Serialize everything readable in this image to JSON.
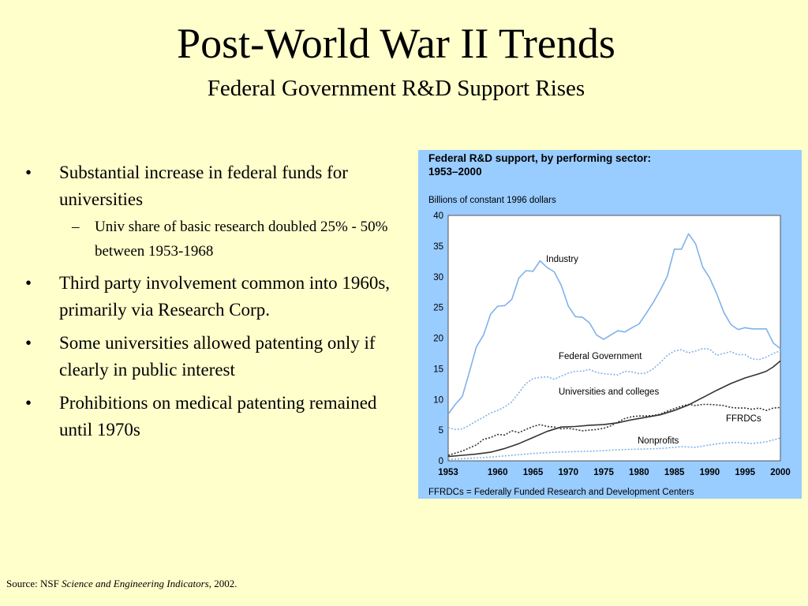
{
  "slide": {
    "title": "Post-World War II Trends",
    "subtitle": "Federal Government R&D Support Rises",
    "bullets": [
      {
        "text": "Substantial increase in federal funds for universities",
        "subitems": [
          "Univ share of basic research doubled 25% - 50% between 1953-1968"
        ]
      },
      {
        "text": "Third party involvement common into 1960s, primarily via Research Corp.",
        "subitems": []
      },
      {
        "text": "Some universities allowed patenting only if clearly in public interest",
        "subitems": []
      },
      {
        "text": "Prohibitions on medical patenting remained until 1970s",
        "subitems": []
      }
    ],
    "source": {
      "prefix": "Source: NSF ",
      "publication": "Science and Engineering Indicators",
      "suffix": ", 2002."
    }
  },
  "colors": {
    "background": "#ffffcc",
    "chart_panel": "#99ccff",
    "plot_area": "#ffffff",
    "light_series": "#7fb2ea",
    "dark_series": "#333333"
  },
  "chart_data": {
    "type": "line",
    "title_lines": [
      "Federal R&D support, by performing sector:",
      "1953–2000"
    ],
    "ylabel": "Billions of constant 1996 dollars",
    "xlabel": "",
    "footnote": "FFRDCs = Federally Funded Research and Development Centers",
    "ylim": [
      0,
      40
    ],
    "xlim": [
      1953,
      2000
    ],
    "y_ticks": [
      0,
      5,
      10,
      15,
      20,
      25,
      30,
      35,
      40
    ],
    "x_ticks": [
      1953,
      1960,
      1965,
      1970,
      1975,
      1980,
      1985,
      1990,
      1995,
      2000
    ],
    "grid": false,
    "legend": "inline labels",
    "series": [
      {
        "name": "Industry",
        "style": "light-solid",
        "points": [
          [
            1953,
            7.6
          ],
          [
            1954,
            9.2
          ],
          [
            1955,
            10.5
          ],
          [
            1956,
            14.5
          ],
          [
            1957,
            18.6
          ],
          [
            1958,
            20.5
          ],
          [
            1959,
            23.9
          ],
          [
            1960,
            25.2
          ],
          [
            1961,
            25.3
          ],
          [
            1962,
            26.3
          ],
          [
            1963,
            29.8
          ],
          [
            1964,
            31.0
          ],
          [
            1965,
            30.9
          ],
          [
            1966,
            32.6
          ],
          [
            1967,
            31.5
          ],
          [
            1968,
            30.8
          ],
          [
            1969,
            28.6
          ],
          [
            1970,
            25.2
          ],
          [
            1971,
            23.5
          ],
          [
            1972,
            23.4
          ],
          [
            1973,
            22.5
          ],
          [
            1974,
            20.5
          ],
          [
            1975,
            19.8
          ],
          [
            1976,
            20.5
          ],
          [
            1977,
            21.2
          ],
          [
            1978,
            21.0
          ],
          [
            1979,
            21.7
          ],
          [
            1980,
            22.3
          ],
          [
            1981,
            24.0
          ],
          [
            1982,
            25.8
          ],
          [
            1983,
            27.8
          ],
          [
            1984,
            30.1
          ],
          [
            1985,
            34.5
          ],
          [
            1986,
            34.5
          ],
          [
            1987,
            37.0
          ],
          [
            1988,
            35.4
          ],
          [
            1989,
            31.6
          ],
          [
            1990,
            29.8
          ],
          [
            1991,
            27.2
          ],
          [
            1992,
            24.2
          ],
          [
            1993,
            22.2
          ],
          [
            1994,
            21.4
          ],
          [
            1995,
            21.7
          ],
          [
            1996,
            21.5
          ],
          [
            1997,
            21.5
          ],
          [
            1998,
            21.5
          ],
          [
            1999,
            19.2
          ],
          [
            2000,
            18.3
          ]
        ]
      },
      {
        "name": "Federal Government",
        "style": "light-dotted",
        "points": [
          [
            1953,
            5.4
          ],
          [
            1954,
            5.1
          ],
          [
            1955,
            5.2
          ],
          [
            1956,
            5.8
          ],
          [
            1957,
            6.5
          ],
          [
            1958,
            7.1
          ],
          [
            1959,
            7.8
          ],
          [
            1960,
            8.2
          ],
          [
            1961,
            8.8
          ],
          [
            1962,
            9.6
          ],
          [
            1963,
            11.1
          ],
          [
            1964,
            12.6
          ],
          [
            1965,
            13.4
          ],
          [
            1966,
            13.6
          ],
          [
            1967,
            13.7
          ],
          [
            1968,
            13.3
          ],
          [
            1969,
            13.8
          ],
          [
            1970,
            14.3
          ],
          [
            1971,
            14.6
          ],
          [
            1972,
            14.6
          ],
          [
            1973,
            14.9
          ],
          [
            1974,
            14.4
          ],
          [
            1975,
            14.2
          ],
          [
            1976,
            14.1
          ],
          [
            1977,
            14.0
          ],
          [
            1978,
            14.6
          ],
          [
            1979,
            14.5
          ],
          [
            1980,
            14.2
          ],
          [
            1981,
            14.3
          ],
          [
            1982,
            15.0
          ],
          [
            1983,
            16.0
          ],
          [
            1984,
            17.2
          ],
          [
            1985,
            17.9
          ],
          [
            1986,
            18.1
          ],
          [
            1987,
            17.6
          ],
          [
            1988,
            17.9
          ],
          [
            1989,
            18.3
          ],
          [
            1990,
            18.2
          ],
          [
            1991,
            17.2
          ],
          [
            1992,
            17.5
          ],
          [
            1993,
            17.8
          ],
          [
            1994,
            17.3
          ],
          [
            1995,
            17.3
          ],
          [
            1996,
            16.6
          ],
          [
            1997,
            16.5
          ],
          [
            1998,
            16.9
          ],
          [
            1999,
            17.5
          ],
          [
            2000,
            17.9
          ]
        ]
      },
      {
        "name": "Universities and colleges",
        "style": "dark-solid",
        "points": [
          [
            1953,
            0.7
          ],
          [
            1955,
            0.9
          ],
          [
            1957,
            1.1
          ],
          [
            1959,
            1.4
          ],
          [
            1961,
            2.0
          ],
          [
            1963,
            2.8
          ],
          [
            1965,
            3.8
          ],
          [
            1967,
            4.8
          ],
          [
            1969,
            5.5
          ],
          [
            1971,
            5.6
          ],
          [
            1973,
            5.8
          ],
          [
            1975,
            5.9
          ],
          [
            1977,
            6.2
          ],
          [
            1979,
            6.7
          ],
          [
            1981,
            7.1
          ],
          [
            1983,
            7.5
          ],
          [
            1985,
            8.2
          ],
          [
            1987,
            9.1
          ],
          [
            1989,
            10.3
          ],
          [
            1991,
            11.5
          ],
          [
            1993,
            12.6
          ],
          [
            1995,
            13.5
          ],
          [
            1997,
            14.2
          ],
          [
            1998,
            14.6
          ],
          [
            1999,
            15.3
          ],
          [
            2000,
            16.3
          ]
        ]
      },
      {
        "name": "FFRDCs",
        "style": "dark-dotted",
        "points": [
          [
            1953,
            0.9
          ],
          [
            1955,
            1.6
          ],
          [
            1957,
            2.6
          ],
          [
            1958,
            3.5
          ],
          [
            1959,
            3.8
          ],
          [
            1960,
            4.3
          ],
          [
            1961,
            4.2
          ],
          [
            1962,
            4.9
          ],
          [
            1963,
            4.6
          ],
          [
            1964,
            5.1
          ],
          [
            1965,
            5.6
          ],
          [
            1966,
            5.9
          ],
          [
            1967,
            5.6
          ],
          [
            1968,
            5.5
          ],
          [
            1969,
            5.2
          ],
          [
            1970,
            5.3
          ],
          [
            1971,
            5.1
          ],
          [
            1972,
            4.9
          ],
          [
            1973,
            5.0
          ],
          [
            1974,
            5.1
          ],
          [
            1975,
            5.3
          ],
          [
            1976,
            5.7
          ],
          [
            1977,
            6.3
          ],
          [
            1978,
            6.9
          ],
          [
            1979,
            7.2
          ],
          [
            1980,
            7.3
          ],
          [
            1981,
            7.3
          ],
          [
            1982,
            7.4
          ],
          [
            1983,
            7.6
          ],
          [
            1984,
            8.1
          ],
          [
            1985,
            8.5
          ],
          [
            1986,
            8.9
          ],
          [
            1987,
            9.2
          ],
          [
            1988,
            9.0
          ],
          [
            1989,
            9.2
          ],
          [
            1990,
            9.2
          ],
          [
            1991,
            9.1
          ],
          [
            1992,
            9.0
          ],
          [
            1993,
            8.7
          ],
          [
            1994,
            8.6
          ],
          [
            1995,
            8.6
          ],
          [
            1996,
            8.4
          ],
          [
            1997,
            8.6
          ],
          [
            1998,
            8.2
          ],
          [
            1999,
            8.6
          ],
          [
            2000,
            8.7
          ]
        ]
      },
      {
        "name": "Nonprofits",
        "style": "light-dotted",
        "points": [
          [
            1953,
            0.2
          ],
          [
            1956,
            0.4
          ],
          [
            1959,
            0.6
          ],
          [
            1962,
            0.9
          ],
          [
            1965,
            1.2
          ],
          [
            1968,
            1.4
          ],
          [
            1971,
            1.5
          ],
          [
            1974,
            1.6
          ],
          [
            1977,
            1.8
          ],
          [
            1980,
            1.9
          ],
          [
            1983,
            2.0
          ],
          [
            1986,
            2.3
          ],
          [
            1988,
            2.2
          ],
          [
            1990,
            2.6
          ],
          [
            1992,
            2.9
          ],
          [
            1994,
            3.0
          ],
          [
            1996,
            2.8
          ],
          [
            1998,
            3.1
          ],
          [
            2000,
            3.7
          ]
        ]
      }
    ],
    "series_labels": [
      "Industry",
      "Federal Government",
      "Universities and colleges",
      "FFRDCs",
      "Nonprofits"
    ]
  }
}
